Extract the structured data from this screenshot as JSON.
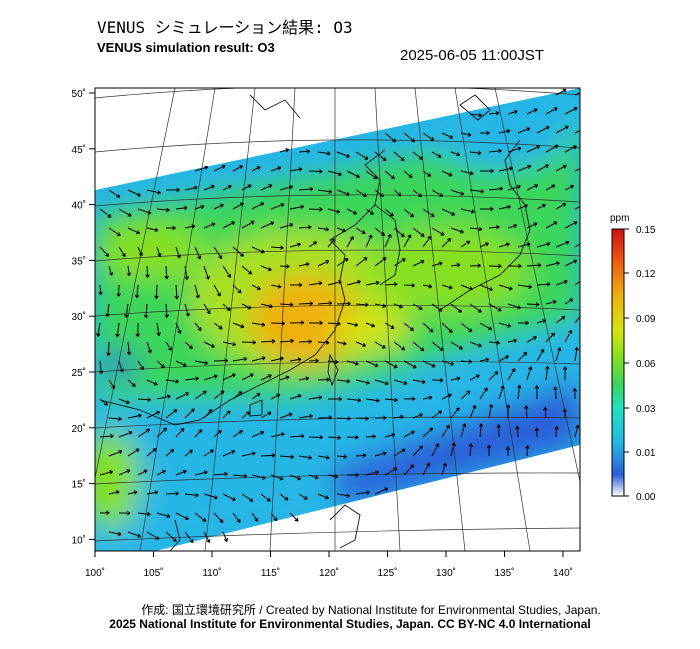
{
  "title_jp": "VENUS シミュレーション結果: O3",
  "title_en": "VENUS simulation result: O3",
  "timestamp": "2025-06-05 11:00JST",
  "map": {
    "lon_ticks": [
      "100˚",
      "105˚",
      "110˚",
      "115˚",
      "120˚",
      "125˚",
      "130˚",
      "135˚",
      "140˚"
    ],
    "lat_ticks": [
      "50˚",
      "45˚",
      "40˚",
      "35˚",
      "30˚",
      "25˚",
      "20˚",
      "15˚",
      "10˚"
    ]
  },
  "colorbar": {
    "unit": "ppm",
    "ticks": [
      "0.15",
      "0.12",
      "0.09",
      "0.06",
      "0.03",
      "0.01",
      "0.00"
    ],
    "colors": [
      "#ffffff",
      "#2a5fd9",
      "#26b6e6",
      "#20e0c0",
      "#3bd65a",
      "#86e020",
      "#d6e410",
      "#f0b010",
      "#ee6010",
      "#d01010"
    ]
  },
  "credit_line1": "作成: 国立環境研究所 / Created by National Institute for Environmental Studies, Japan.",
  "credit_line2": "2025 National Institute for Environmental Studies, Japan. CC BY-NC 4.0 International"
}
